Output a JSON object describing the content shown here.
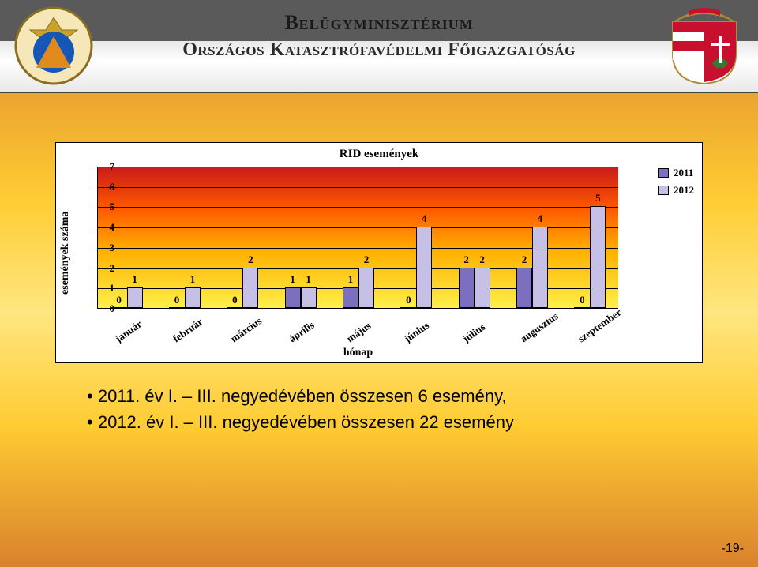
{
  "header": {
    "line1": "Belügyminisztérium",
    "line2": "Országos Katasztrófavédelmi Főigazgatóság"
  },
  "chart": {
    "type": "bar",
    "title": "RID események",
    "yaxis_label": "események száma",
    "xaxis_label": "hónap",
    "ylim": [
      0,
      7
    ],
    "ytick_step": 1,
    "background_gradient": [
      "#ca1a1a",
      "#ff5a00",
      "#ffb100",
      "#fff04a"
    ],
    "series": [
      {
        "name": "2011",
        "color": "#7d6fbf",
        "values": [
          0,
          0,
          0,
          1,
          1,
          0,
          2,
          2,
          0
        ]
      },
      {
        "name": "2012",
        "color": "#c7c0e6",
        "values": [
          1,
          1,
          2,
          1,
          2,
          4,
          2,
          4,
          5
        ]
      }
    ],
    "categories": [
      "január",
      "február",
      "március",
      "április",
      "május",
      "június",
      "július",
      "augusztus",
      "szeptember"
    ],
    "bar_border": "#000000",
    "label_fontsize": 13,
    "title_fontsize": 15
  },
  "bullets": [
    "2011. év I. – III. negyedévében összesen 6 esemény,",
    "2012. év I. – III. negyedévében összesen 22 esemény"
  ],
  "page_number": "-19-",
  "legend": {
    "items": [
      {
        "label": "2011",
        "color": "#7d6fbf"
      },
      {
        "label": "2012",
        "color": "#c7c0e6"
      }
    ]
  }
}
